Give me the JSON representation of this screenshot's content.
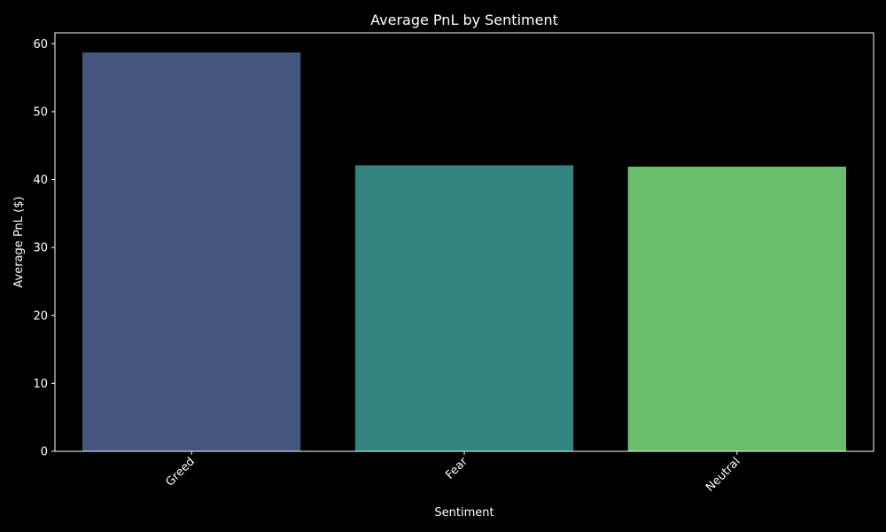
{
  "chart_data": {
    "type": "bar",
    "title": "Average PnL by Sentiment",
    "xlabel": "Sentiment",
    "ylabel": "Average PnL ($)",
    "categories": [
      "Greed",
      "Fear",
      "Neutral"
    ],
    "values": [
      58.7,
      42.1,
      41.9
    ],
    "colors": [
      "#45577f",
      "#31847f",
      "#6bbd6e"
    ],
    "ylim": [
      0,
      61.6
    ],
    "yticks": [
      0,
      10,
      20,
      30,
      40,
      50,
      60
    ],
    "ytick_labels": [
      "0",
      "10",
      "20",
      "30",
      "40",
      "50",
      "60"
    ],
    "xtick_rotation": 45,
    "grid": false,
    "legend": "none",
    "background": "#000000",
    "foreground": "#ffffff"
  }
}
